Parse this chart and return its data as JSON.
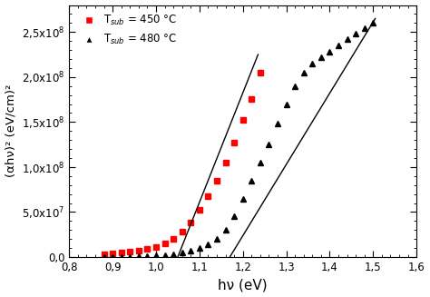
{
  "title": "",
  "xlabel": "hν (eV)",
  "ylabel": "(αhν)² (eV/cm)²",
  "xlim": [
    0.8,
    1.6
  ],
  "ylim": [
    0,
    280000000.0
  ],
  "yticks": [
    0,
    50000000.0,
    100000000.0,
    150000000.0,
    200000000.0,
    250000000.0
  ],
  "xticks": [
    0.8,
    0.9,
    1.0,
    1.1,
    1.2,
    1.3,
    1.4,
    1.5,
    1.6
  ],
  "legend1_label": "T$_{sub}$ = 450 °C",
  "legend2_label": "T$_{sub}$ = 480 °C",
  "red_x": [
    0.88,
    0.9,
    0.92,
    0.94,
    0.96,
    0.98,
    1.0,
    1.02,
    1.04,
    1.06,
    1.08,
    1.1,
    1.12,
    1.14,
    1.16,
    1.18,
    1.2,
    1.22,
    1.24
  ],
  "red_y": [
    3000000.0,
    4000000.0,
    5000000.0,
    6000000.0,
    7000000.0,
    9000000.0,
    11000000.0,
    15000000.0,
    20000000.0,
    28000000.0,
    38000000.0,
    52000000.0,
    68000000.0,
    85000000.0,
    105000000.0,
    127000000.0,
    152000000.0,
    176000000.0,
    205000000.0
  ],
  "black_x": [
    0.88,
    0.9,
    0.92,
    0.94,
    0.96,
    0.98,
    1.0,
    1.02,
    1.04,
    1.06,
    1.08,
    1.1,
    1.12,
    1.14,
    1.16,
    1.18,
    1.2,
    1.22,
    1.24,
    1.26,
    1.28,
    1.3,
    1.32,
    1.34,
    1.36,
    1.38,
    1.4,
    1.42,
    1.44,
    1.46,
    1.48,
    1.5
  ],
  "black_y": [
    0,
    200000.0,
    300000.0,
    500000.0,
    800000.0,
    1200000.0,
    1800000.0,
    2500000.0,
    3500000.0,
    5000000.0,
    7000000.0,
    10000000.0,
    14000000.0,
    20000000.0,
    30000000.0,
    45000000.0,
    65000000.0,
    85000000.0,
    105000000.0,
    125000000.0,
    148000000.0,
    170000000.0,
    190000000.0,
    205000000.0,
    215000000.0,
    222000000.0,
    228000000.0,
    235000000.0,
    242000000.0,
    248000000.0,
    254000000.0,
    260000000.0
  ],
  "red_line_x": [
    1.05,
    1.235
  ],
  "red_line_y": [
    0,
    225000000.0
  ],
  "black_line_x": [
    1.17,
    1.505
  ],
  "black_line_y": [
    0,
    265000000.0
  ],
  "marker_color_red": "#ff0000",
  "marker_color_black": "#000000",
  "line_color": "#000000",
  "bg_color": "#ffffff"
}
